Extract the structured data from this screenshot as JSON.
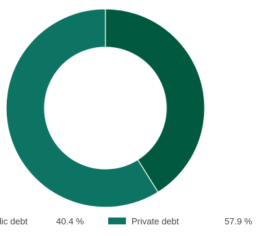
{
  "chart_data": {
    "type": "pie",
    "style": "donut",
    "legend_position": "bottom",
    "series": [
      {
        "name": "Public debt",
        "value": 40.4,
        "value_label": "40.4 %",
        "color": "#015a40"
      },
      {
        "name": "Private debt",
        "value": 57.9,
        "value_label": "57.9 %",
        "color": "#0d7362"
      }
    ]
  }
}
